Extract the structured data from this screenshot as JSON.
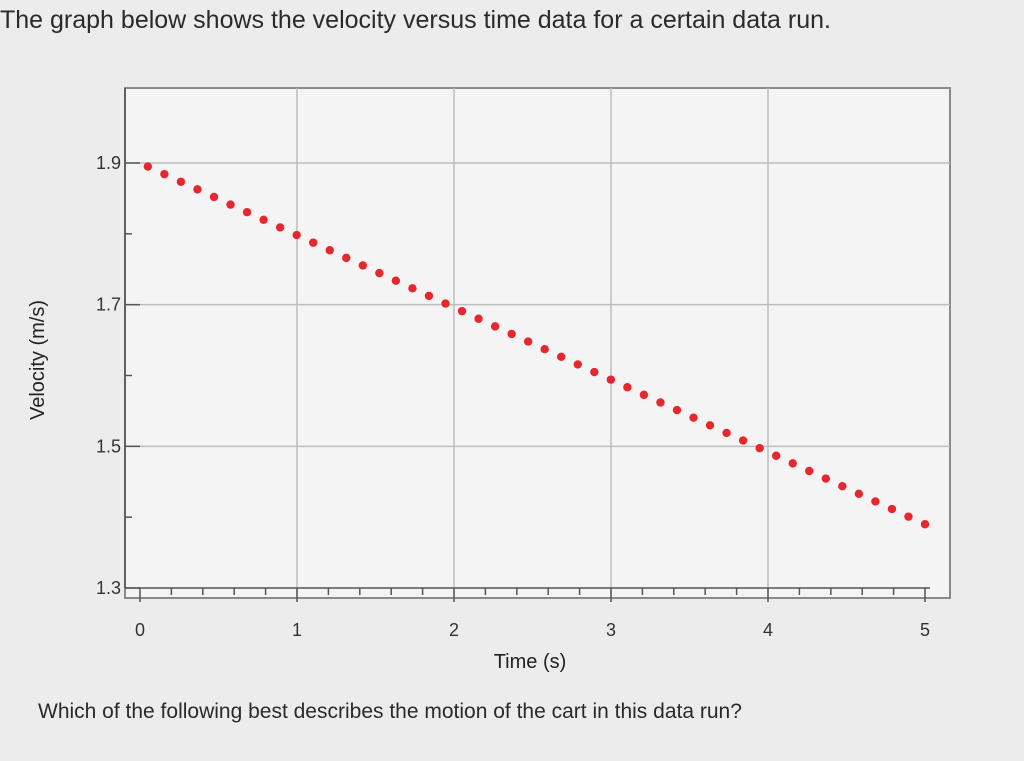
{
  "question": {
    "prompt": "The graph below shows the velocity versus time data for a certain data run.",
    "followup": "Which of the following best describes the motion of the cart in this data run?"
  },
  "chart_data": {
    "type": "scatter",
    "xlabel": "Time (s)",
    "ylabel": "Velocity (m/s)",
    "xlim": [
      0,
      5
    ],
    "ylim": [
      1.3,
      1.95
    ],
    "x_ticks": [
      "0",
      "1",
      "2",
      "3",
      "4",
      "5"
    ],
    "y_ticks": [
      "1.3",
      "1.5",
      "1.7",
      "1.9"
    ],
    "y_tick_values": [
      1.3,
      1.5,
      1.7,
      1.9
    ],
    "grid": true,
    "marker_color": "#e8262e",
    "series": [
      {
        "x_start": 0.05,
        "x_end": 5.0,
        "y_start": 1.895,
        "y_end": 1.39,
        "point_count": 48
      }
    ]
  }
}
